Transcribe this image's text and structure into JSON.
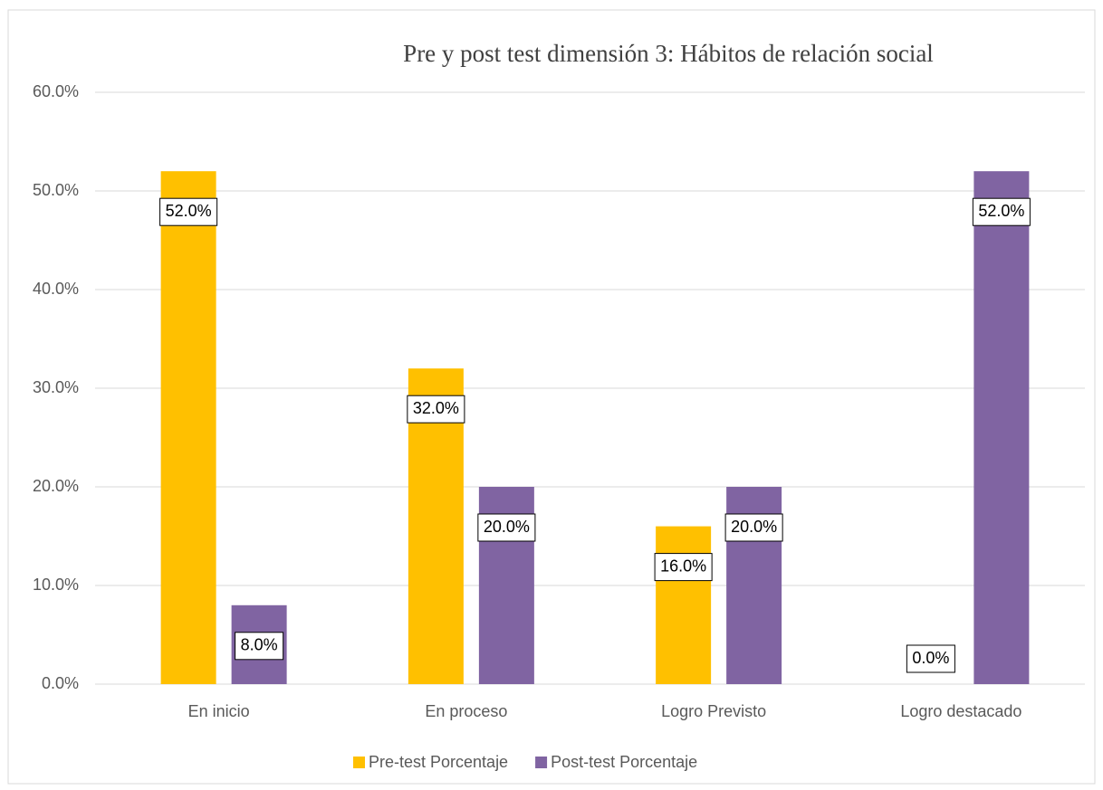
{
  "chart_data": {
    "type": "bar",
    "title": "Pre y post test dimensión 3: Hábitos de relación social",
    "categories": [
      "En inicio",
      "En proceso",
      "Logro Previsto",
      "Logro destacado"
    ],
    "series": [
      {
        "name": "Pre-test Porcentaje",
        "color": "#ffc000",
        "values": [
          52,
          32,
          16,
          0
        ],
        "value_labels": [
          "52.0%",
          "32.0%",
          "16.0%",
          "0.0%"
        ]
      },
      {
        "name": "Post-test Porcentaje",
        "color": "#8064a2",
        "values": [
          8,
          20,
          20,
          52
        ],
        "value_labels": [
          "8.0%",
          "20.0%",
          "20.0%",
          "52.0%"
        ]
      }
    ],
    "ylim": [
      0,
      60
    ],
    "yticks": [
      {
        "value": 0,
        "label": "0.0%"
      },
      {
        "value": 10,
        "label": "10.0%"
      },
      {
        "value": 20,
        "label": "20.0%"
      },
      {
        "value": 30,
        "label": "30.0%"
      },
      {
        "value": 40,
        "label": "40.0%"
      },
      {
        "value": 50,
        "label": "50.0%"
      },
      {
        "value": 60,
        "label": "60.0%"
      }
    ],
    "grid": true,
    "legend": "bottom"
  }
}
